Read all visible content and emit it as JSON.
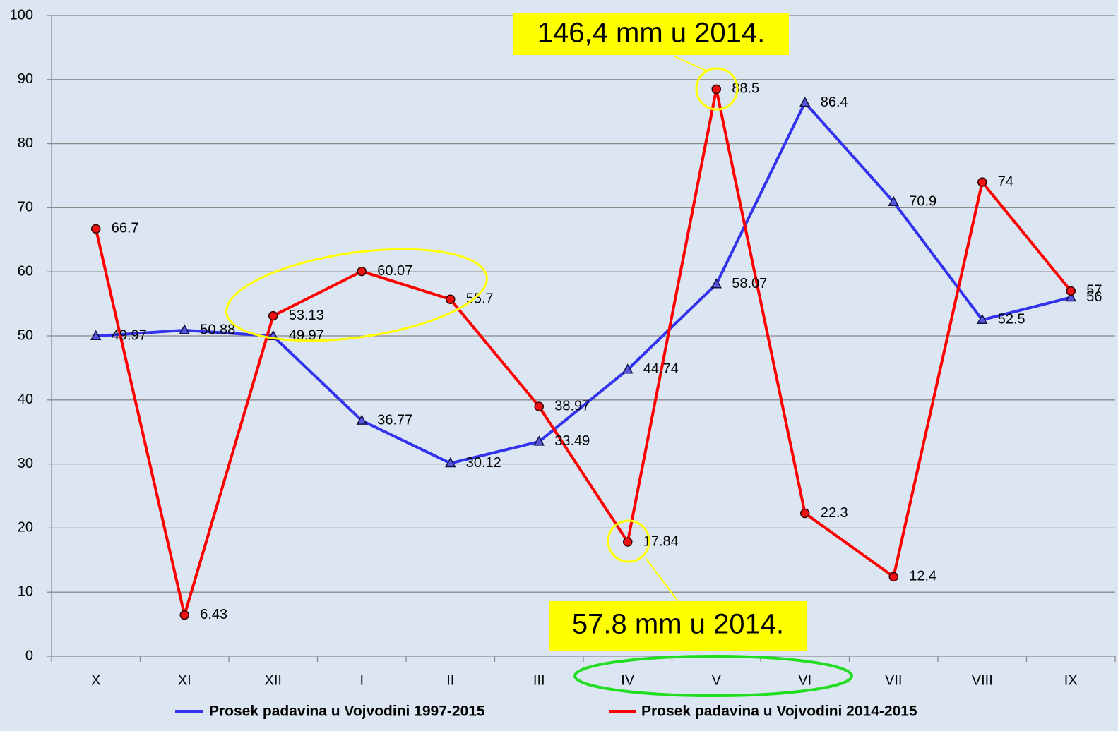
{
  "chart_data": {
    "type": "line",
    "categories": [
      "X",
      "XI",
      "XII",
      "I",
      "II",
      "III",
      "IV",
      "V",
      "VI",
      "VII",
      "VIII",
      "IX"
    ],
    "series": [
      {
        "name": "Prosek padavina u Vojvodini 1997-2015",
        "color": "#3333ee",
        "marker": "triangle",
        "values": [
          49.97,
          50.88,
          49.97,
          36.77,
          30.12,
          33.49,
          44.74,
          58.07,
          86.4,
          70.9,
          52.5,
          56
        ]
      },
      {
        "name": "Prosek padavina u Vojvodini 2014-2015",
        "color": "#ff0000",
        "marker": "circle",
        "values": [
          66.7,
          6.43,
          53.13,
          60.07,
          55.7,
          38.97,
          17.84,
          88.5,
          22.3,
          12.4,
          74,
          57
        ]
      }
    ],
    "ylim": [
      0,
      100
    ],
    "yticks": [
      0,
      10,
      20,
      30,
      40,
      50,
      60,
      70,
      80,
      90,
      100
    ],
    "grid": true,
    "legend": "bottom",
    "annotations": [
      "146,4 mm u 2014.",
      "57.8 mm u 2014."
    ]
  }
}
